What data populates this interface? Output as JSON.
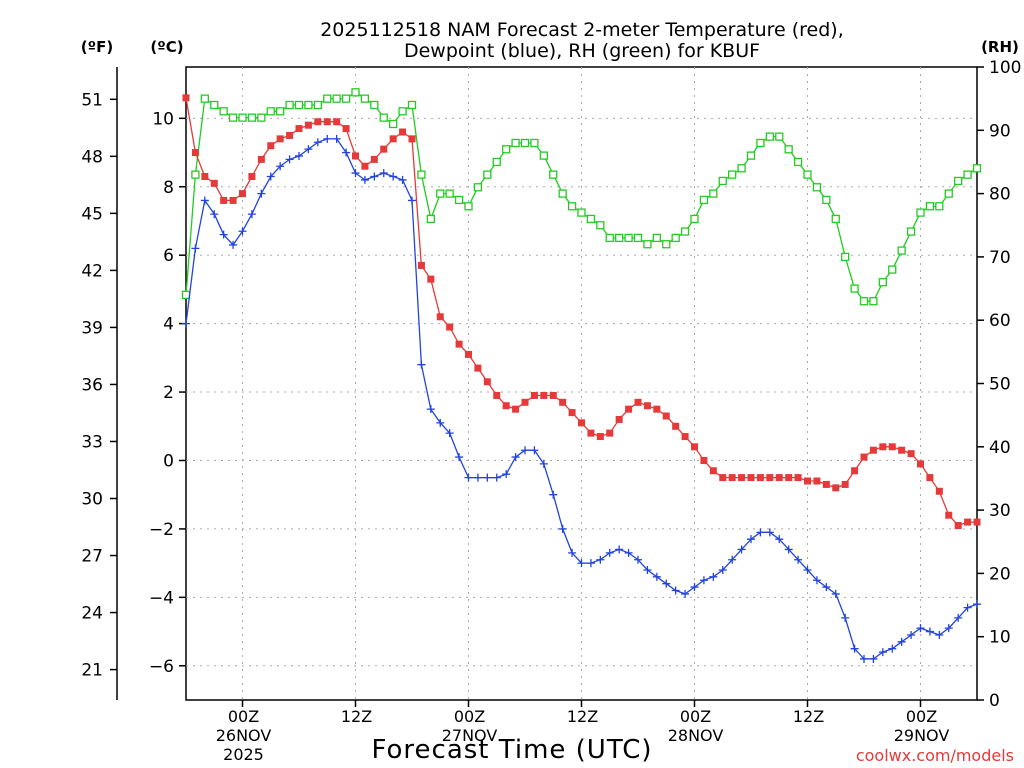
{
  "chart_data": {
    "type": "line",
    "title": "2025112518 NAM Forecast 2-meter Temperature (red),",
    "subtitle": "Dewpoint (blue), RH (green) for KBUF",
    "xlabel": "Forecast Time (UTC)",
    "axis_units": {
      "fahrenheit": "(ºF)",
      "celsius": "(ºC)",
      "rh": "(RH)"
    },
    "credit": "coolwx.com/models",
    "x_range_hours": [
      18,
      102
    ],
    "x_ticks": [
      {
        "hour": 24,
        "labels": [
          "00Z",
          "26NOV",
          "2025"
        ]
      },
      {
        "hour": 36,
        "labels": [
          "12Z"
        ]
      },
      {
        "hour": 48,
        "labels": [
          "00Z",
          "27NOV"
        ]
      },
      {
        "hour": 60,
        "labels": [
          "12Z"
        ]
      },
      {
        "hour": 72,
        "labels": [
          "00Z",
          "28NOV"
        ]
      },
      {
        "hour": 84,
        "labels": [
          "12Z"
        ]
      },
      {
        "hour": 96,
        "labels": [
          "00Z",
          "29NOV"
        ]
      }
    ],
    "celsius_range": [
      -7,
      11.5
    ],
    "celsius_ticks": [
      "10",
      "8",
      "6",
      "4",
      "2",
      "0",
      "−2",
      "−4",
      "−6"
    ],
    "fahrenheit_ticks": [
      "51",
      "48",
      "45",
      "42",
      "39",
      "36",
      "33",
      "30",
      "27",
      "24",
      "21"
    ],
    "rh_range": [
      0,
      100
    ],
    "rh_ticks": [
      "100",
      "90",
      "80",
      "70",
      "60",
      "50",
      "40",
      "30",
      "20",
      "10",
      "0"
    ],
    "series": [
      {
        "name": "Temperature",
        "unit": "°C",
        "axis": "celsius",
        "color": "#e63939",
        "marker": "filled-square",
        "x": [
          18,
          19,
          20,
          21,
          22,
          23,
          24,
          25,
          26,
          27,
          28,
          29,
          30,
          31,
          32,
          33,
          34,
          35,
          36,
          37,
          38,
          39,
          40,
          41,
          42,
          43,
          44,
          45,
          46,
          47,
          48,
          49,
          50,
          51,
          52,
          53,
          54,
          55,
          56,
          57,
          58,
          59,
          60,
          61,
          62,
          63,
          64,
          65,
          66,
          67,
          68,
          69,
          70,
          71,
          72,
          73,
          74,
          75,
          76,
          77,
          78,
          79,
          80,
          81,
          82,
          83,
          84,
          85,
          86,
          87,
          88,
          89,
          90,
          91,
          92,
          93,
          94,
          95,
          96,
          97,
          98,
          99,
          100,
          101,
          102
        ],
        "values": [
          10.6,
          9.0,
          8.3,
          8.1,
          7.6,
          7.6,
          7.8,
          8.3,
          8.8,
          9.2,
          9.4,
          9.5,
          9.7,
          9.8,
          9.9,
          9.9,
          9.9,
          9.7,
          8.9,
          8.6,
          8.8,
          9.1,
          9.4,
          9.6,
          9.4,
          5.7,
          5.3,
          4.2,
          3.9,
          3.4,
          3.1,
          2.7,
          2.3,
          1.9,
          1.6,
          1.5,
          1.7,
          1.9,
          1.9,
          1.9,
          1.7,
          1.4,
          1.1,
          0.8,
          0.7,
          0.8,
          1.2,
          1.5,
          1.7,
          1.6,
          1.5,
          1.3,
          1.0,
          0.7,
          0.4,
          0.0,
          -0.3,
          -0.5,
          -0.5,
          -0.5,
          -0.5,
          -0.5,
          -0.5,
          -0.5,
          -0.5,
          -0.5,
          -0.6,
          -0.6,
          -0.7,
          -0.8,
          -0.7,
          -0.3,
          0.1,
          0.3,
          0.4,
          0.4,
          0.3,
          0.2,
          -0.1,
          -0.5,
          -0.9,
          -1.6,
          -1.9,
          -1.8,
          -1.8
        ]
      },
      {
        "name": "Dewpoint",
        "unit": "°C",
        "axis": "celsius",
        "color": "#2244dd",
        "marker": "plus",
        "x": [
          18,
          19,
          20,
          21,
          22,
          23,
          24,
          25,
          26,
          27,
          28,
          29,
          30,
          31,
          32,
          33,
          34,
          35,
          36,
          37,
          38,
          39,
          40,
          41,
          42,
          43,
          44,
          45,
          46,
          47,
          48,
          49,
          50,
          51,
          52,
          53,
          54,
          55,
          56,
          57,
          58,
          59,
          60,
          61,
          62,
          63,
          64,
          65,
          66,
          67,
          68,
          69,
          70,
          71,
          72,
          73,
          74,
          75,
          76,
          77,
          78,
          79,
          80,
          81,
          82,
          83,
          84,
          85,
          86,
          87,
          88,
          89,
          90,
          91,
          92,
          93,
          94,
          95,
          96,
          97,
          98,
          99,
          100,
          101,
          102
        ],
        "values": [
          4.0,
          6.2,
          7.6,
          7.2,
          6.6,
          6.3,
          6.7,
          7.2,
          7.8,
          8.3,
          8.6,
          8.8,
          8.9,
          9.1,
          9.3,
          9.4,
          9.4,
          9.0,
          8.4,
          8.2,
          8.3,
          8.4,
          8.3,
          8.2,
          7.6,
          2.8,
          1.5,
          1.1,
          0.8,
          0.1,
          -0.5,
          -0.5,
          -0.5,
          -0.5,
          -0.4,
          0.1,
          0.3,
          0.3,
          -0.1,
          -1.0,
          -2.0,
          -2.7,
          -3.0,
          -3.0,
          -2.9,
          -2.7,
          -2.6,
          -2.7,
          -2.9,
          -3.2,
          -3.4,
          -3.6,
          -3.8,
          -3.9,
          -3.7,
          -3.5,
          -3.4,
          -3.2,
          -2.9,
          -2.6,
          -2.3,
          -2.1,
          -2.1,
          -2.3,
          -2.6,
          -2.9,
          -3.2,
          -3.5,
          -3.7,
          -3.9,
          -4.6,
          -5.5,
          -5.8,
          -5.8,
          -5.6,
          -5.5,
          -5.3,
          -5.1,
          -4.9,
          -5.0,
          -5.1,
          -4.9,
          -4.6,
          -4.3,
          -4.2
        ]
      },
      {
        "name": "RH",
        "unit": "%",
        "axis": "rh",
        "color": "#22cc22",
        "marker": "open-square",
        "x": [
          18,
          19,
          20,
          21,
          22,
          23,
          24,
          25,
          26,
          27,
          28,
          29,
          30,
          31,
          32,
          33,
          34,
          35,
          36,
          37,
          38,
          39,
          40,
          41,
          42,
          43,
          44,
          45,
          46,
          47,
          48,
          49,
          50,
          51,
          52,
          53,
          54,
          55,
          56,
          57,
          58,
          59,
          60,
          61,
          62,
          63,
          64,
          65,
          66,
          67,
          68,
          69,
          70,
          71,
          72,
          73,
          74,
          75,
          76,
          77,
          78,
          79,
          80,
          81,
          82,
          83,
          84,
          85,
          86,
          87,
          88,
          89,
          90,
          91,
          92,
          93,
          94,
          95,
          96,
          97,
          98,
          99,
          100,
          101,
          102
        ],
        "values": [
          64,
          83,
          95,
          94,
          93,
          92,
          92,
          92,
          92,
          93,
          93,
          94,
          94,
          94,
          94,
          95,
          95,
          95,
          96,
          95,
          94,
          92,
          91,
          93,
          94,
          83,
          76,
          80,
          80,
          79,
          78,
          81,
          83,
          85,
          87,
          88,
          88,
          88,
          86,
          83,
          80,
          78,
          77,
          76,
          75,
          73,
          73,
          73,
          73,
          72,
          73,
          72,
          73,
          74,
          76,
          79,
          80,
          82,
          83,
          84,
          86,
          88,
          89,
          89,
          87,
          85,
          83,
          81,
          79,
          76,
          70,
          65,
          63,
          63,
          66,
          68,
          71,
          74,
          77,
          78,
          78,
          80,
          82,
          83,
          84
        ]
      }
    ]
  }
}
